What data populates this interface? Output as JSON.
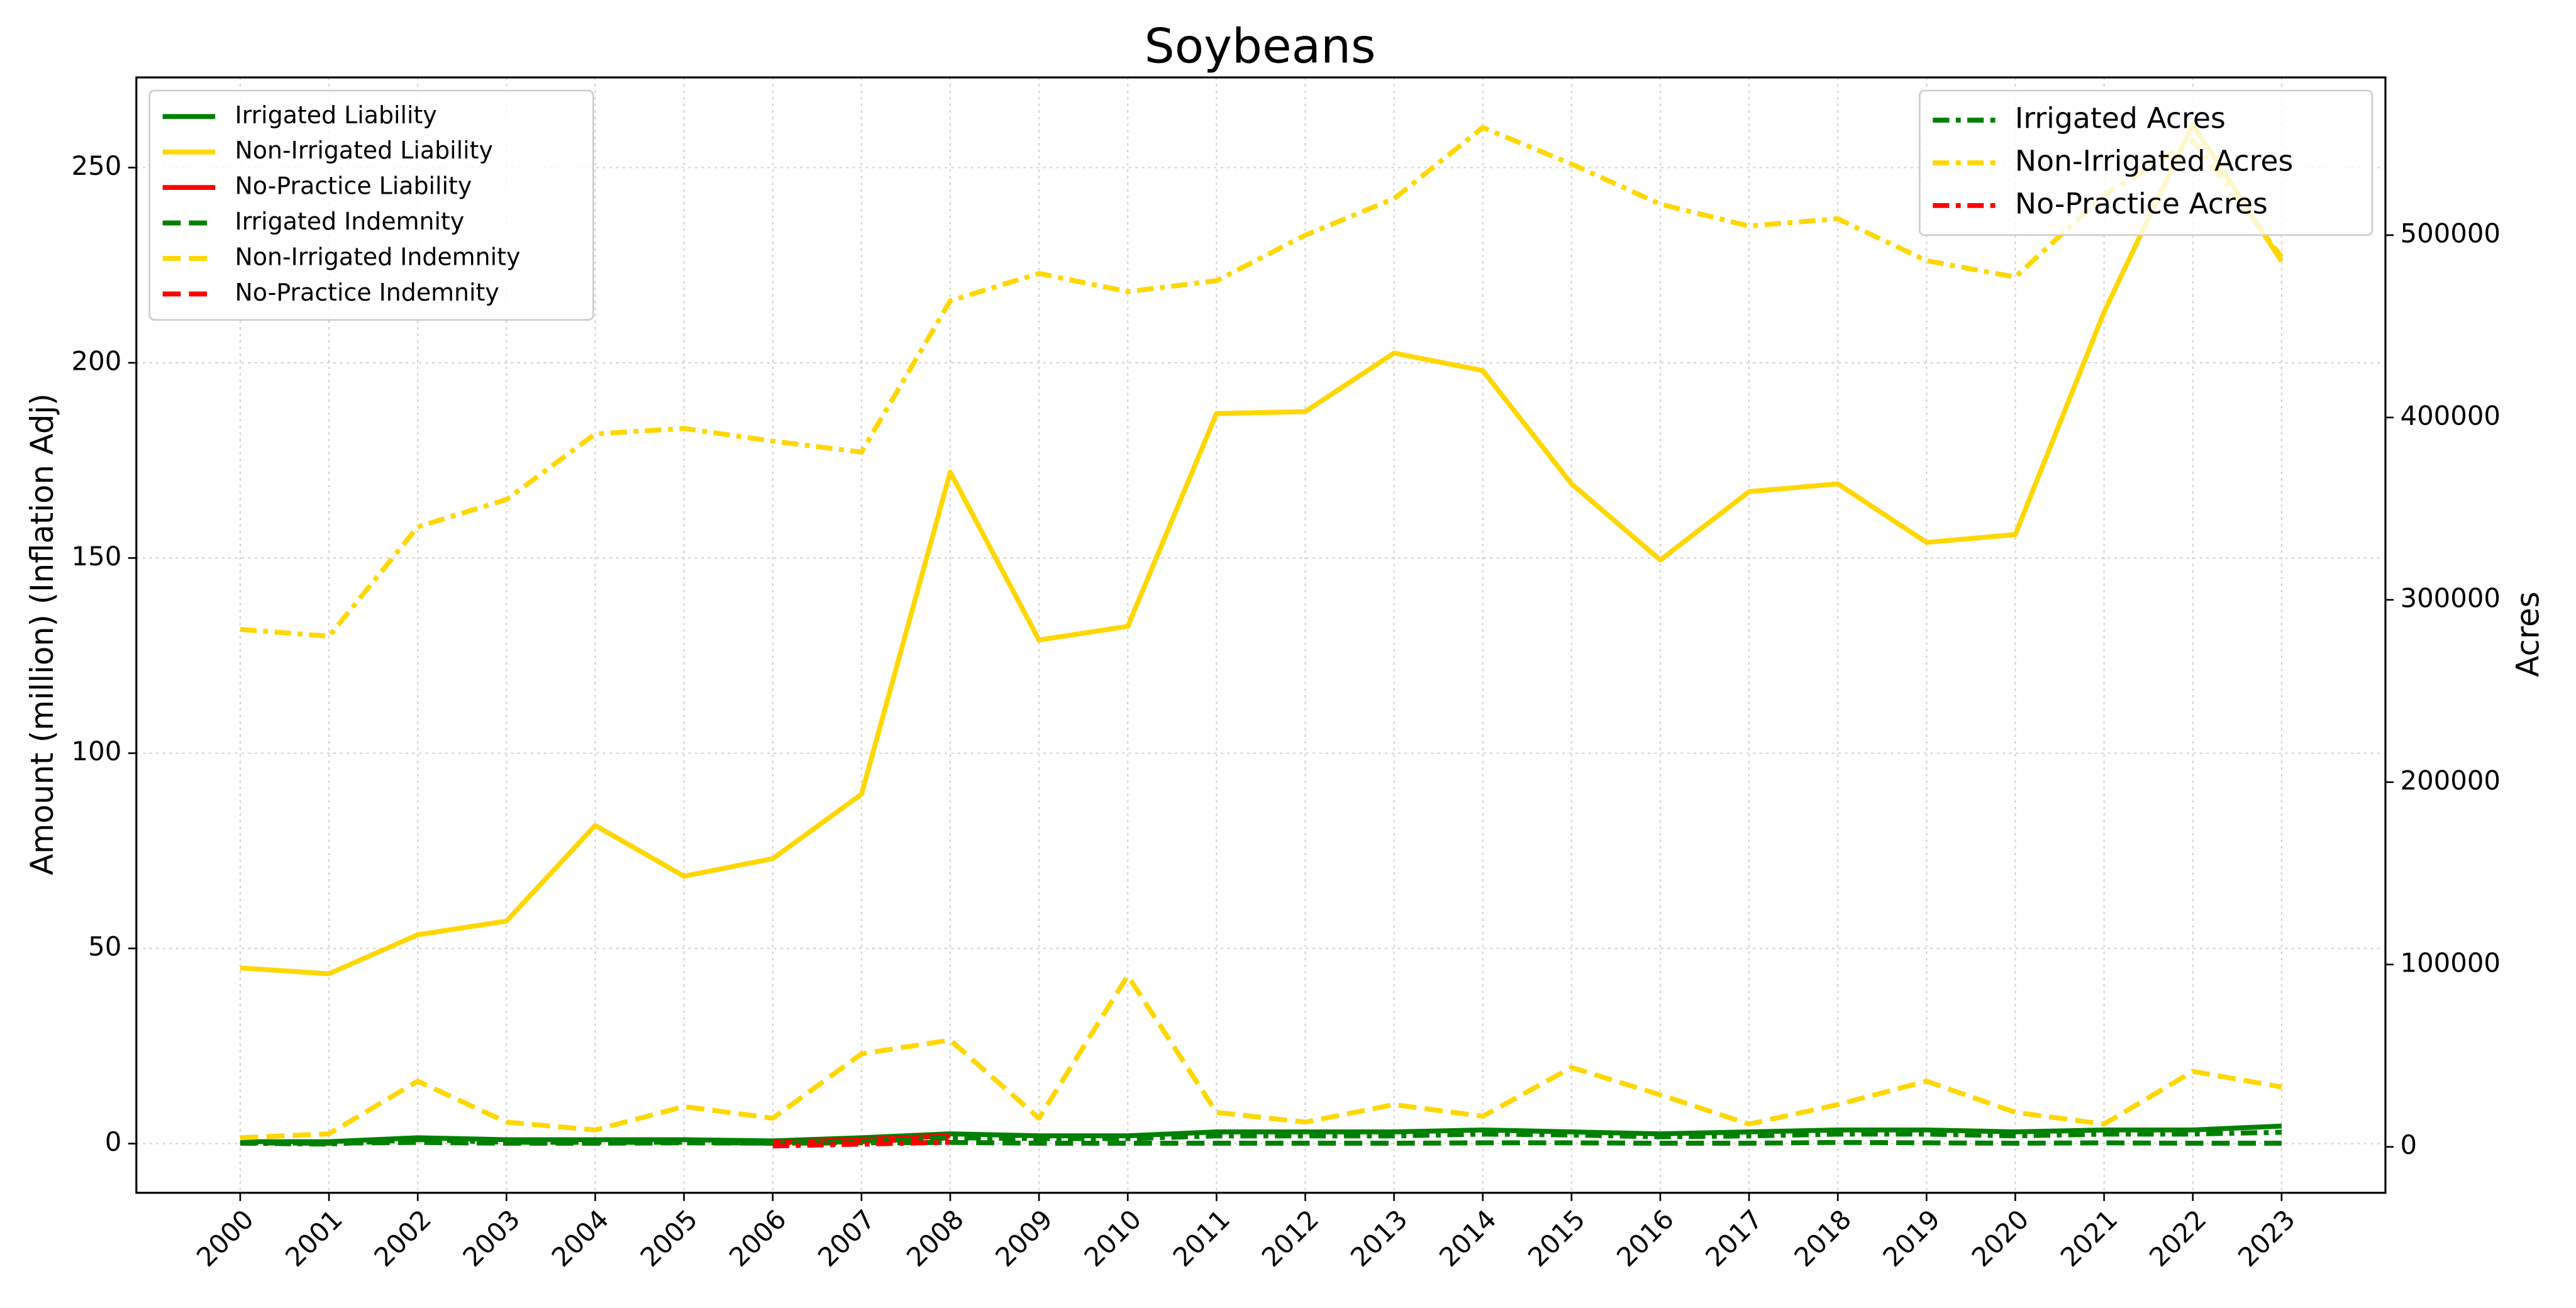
{
  "chart_data": {
    "type": "line",
    "title": "Soybeans",
    "y_label": "Amount (million) (Inflation Adj)",
    "y2_label": "Acres",
    "x": [
      2000,
      2001,
      2002,
      2003,
      2004,
      2005,
      2006,
      2007,
      2008,
      2009,
      2010,
      2011,
      2012,
      2013,
      2014,
      2015,
      2016,
      2017,
      2018,
      2019,
      2020,
      2021,
      2022,
      2023
    ],
    "xlim": [
      1998.83,
      2024.17
    ],
    "xticks": [
      2000,
      2001,
      2002,
      2003,
      2004,
      2005,
      2006,
      2007,
      2008,
      2009,
      2010,
      2011,
      2012,
      2013,
      2014,
      2015,
      2016,
      2017,
      2018,
      2019,
      2020,
      2021,
      2022,
      2023
    ],
    "ylim": [
      -12.6,
      273.1
    ],
    "yticks": [
      0,
      50,
      100,
      150,
      200,
      250
    ],
    "y2lim": [
      -25200,
      586500
    ],
    "y2ticks": [
      0,
      100000,
      200000,
      300000,
      400000,
      500000
    ],
    "grid": true,
    "legend": "upper left",
    "legend2": "upper right",
    "series": [
      {
        "name": "Irrigated Liability",
        "color": "#008000",
        "dash": "solid",
        "axis": "y",
        "values": [
          0.5,
          0.5,
          1.5,
          1,
          1,
          1,
          0.7,
          1.5,
          2.5,
          2,
          2,
          3,
          3,
          3,
          3.5,
          3,
          2.5,
          3,
          3.5,
          3.5,
          3,
          3.5,
          3.5,
          4.5
        ]
      },
      {
        "name": "Non-Irrigated Liability",
        "color": "#ffd700",
        "dash": "solid",
        "axis": "y",
        "values": [
          45,
          43.5,
          53.5,
          57,
          81.5,
          68.5,
          73,
          89.5,
          172,
          129,
          132.5,
          187,
          187.5,
          202.5,
          198,
          169,
          149.5,
          167,
          169,
          154,
          156,
          213,
          261,
          226
        ]
      },
      {
        "name": "No-Practice Liability",
        "color": "#ff0000",
        "dash": "solid",
        "axis": "y",
        "values": [
          null,
          null,
          null,
          null,
          null,
          null,
          0.3,
          1,
          2,
          null,
          null,
          null,
          null,
          null,
          null,
          null,
          null,
          null,
          null,
          null,
          null,
          null,
          null,
          null
        ]
      },
      {
        "name": "Irrigated Indemnity",
        "color": "#008000",
        "dash": "dashed",
        "axis": "y",
        "values": [
          0.2,
          0.1,
          0.3,
          0.1,
          0.1,
          0.2,
          0.1,
          0.2,
          0.3,
          0.1,
          0.1,
          0.1,
          0.1,
          0.1,
          0.2,
          0.2,
          0.1,
          0.1,
          0.3,
          0.2,
          0.1,
          0.2,
          0.1,
          0.1
        ]
      },
      {
        "name": "Non-Irrigated Indemnity",
        "color": "#ffd700",
        "dash": "dashed",
        "axis": "y",
        "values": [
          1.5,
          2.5,
          16,
          5.5,
          3.5,
          9.5,
          6.5,
          23,
          26.5,
          6.5,
          43,
          8,
          5.5,
          10,
          7,
          19.5,
          12.5,
          5,
          10,
          16,
          8,
          5,
          18.5,
          14.5
        ]
      },
      {
        "name": "No-Practice Indemnity",
        "color": "#ff0000",
        "dash": "dashed",
        "axis": "y",
        "values": [
          null,
          null,
          null,
          null,
          null,
          null,
          0.2,
          0.5,
          1.5,
          null,
          null,
          null,
          null,
          null,
          null,
          null,
          null,
          null,
          null,
          null,
          null,
          null,
          null,
          null
        ]
      },
      {
        "name": "Irrigated Acres",
        "color": "#008000",
        "dash": "dashdot",
        "axis": "y2",
        "values": [
          2000,
          1500,
          4000,
          2500,
          2500,
          2500,
          2000,
          3000,
          5000,
          4500,
          4500,
          6000,
          6000,
          6000,
          7000,
          6500,
          5500,
          6000,
          7000,
          7000,
          6000,
          7000,
          7000,
          8000
        ]
      },
      {
        "name": "Non-Irrigated Acres",
        "color": "#ffd700",
        "dash": "dashdot",
        "axis": "y2",
        "values": [
          283800,
          280000,
          340000,
          355000,
          391000,
          394000,
          387000,
          381000,
          464000,
          479000,
          469000,
          475000,
          500000,
          520000,
          559000,
          539000,
          517000,
          505000,
          509000,
          486000,
          477000,
          522000,
          552000,
          488000
        ]
      },
      {
        "name": "No-Practice Acres",
        "color": "#ff0000",
        "dash": "dashdot",
        "axis": "y2",
        "values": [
          null,
          null,
          null,
          null,
          null,
          null,
          500,
          1500,
          2500,
          null,
          null,
          null,
          null,
          null,
          null,
          null,
          null,
          null,
          null,
          null,
          null,
          null,
          null,
          null
        ]
      }
    ]
  }
}
